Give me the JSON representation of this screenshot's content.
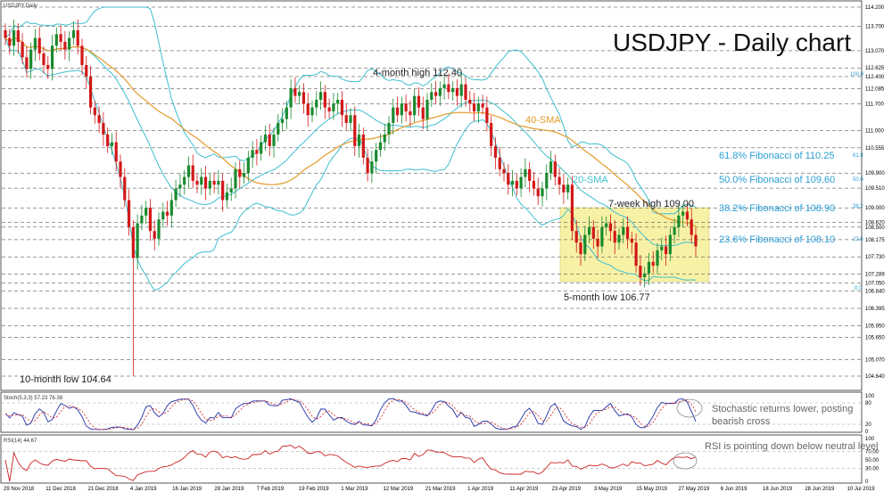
{
  "chart_data": {
    "type": "candlestick",
    "symbol_label": "USDJPY,Daily",
    "title": "USDJPY - Daily chart",
    "price_range": [
      104.64,
      114.2
    ],
    "price_ticks": [
      {
        "label": "114.200",
        "v": 114.2
      },
      {
        "label": "113.700",
        "v": 113.7
      },
      {
        "label": "113.070",
        "v": 113.07
      },
      {
        "label": "112.625",
        "v": 112.625
      },
      {
        "label": "112.400",
        "v": 112.4
      },
      {
        "label": "112.085",
        "v": 112.085
      },
      {
        "label": "111.700",
        "v": 111.7
      },
      {
        "label": "111.000",
        "v": 111.0
      },
      {
        "label": "110.555",
        "v": 110.555
      },
      {
        "label": "109.900",
        "v": 109.9
      },
      {
        "label": "109.510",
        "v": 109.51
      },
      {
        "label": "109.000",
        "v": 109.0
      },
      {
        "label": "108.620",
        "v": 108.62
      },
      {
        "label": "108.500",
        "v": 108.5
      },
      {
        "label": "108.175",
        "v": 108.175
      },
      {
        "label": "107.730",
        "v": 107.73
      },
      {
        "label": "107.289",
        "v": 107.289
      },
      {
        "label": "106.840",
        "v": 106.84
      },
      {
        "label": "107.050",
        "v": 107.05
      },
      {
        "label": "106.395",
        "v": 106.395
      },
      {
        "label": "105.950",
        "v": 105.95
      },
      {
        "label": "105.650",
        "v": 105.65
      },
      {
        "label": "105.070",
        "v": 105.07
      },
      {
        "label": "104.640",
        "v": 104.64
      }
    ],
    "date_labels": [
      "29 Nov 2018",
      "11 Dec 2018",
      "21 Dec 2018",
      "4 Jan 2019",
      "16 Jan 2019",
      "28 Jan 2019",
      "7 Feb 2019",
      "19 Feb 2019",
      "1 Mar 2019",
      "12 Mar 2019",
      "21 Mar 2019",
      "1 Apr 2019",
      "11 Apr 2019",
      "23 Apr 2019",
      "3 May 2019",
      "15 May 2019",
      "27 May 2019",
      "6 Jun 2019",
      "18 Jun 2019",
      "28 Jun 2019",
      "10 Jul 2019"
    ],
    "closes": [
      113.4,
      113.2,
      113.6,
      113.3,
      112.9,
      112.6,
      113.1,
      113.4,
      113.0,
      112.7,
      112.6,
      113.2,
      113.5,
      113.3,
      113.1,
      113.4,
      113.6,
      113.2,
      112.7,
      112.4,
      111.6,
      111.4,
      111.2,
      110.9,
      110.6,
      110.7,
      110.2,
      109.8,
      109.2,
      108.5,
      107.7,
      108.6,
      108.8,
      109.0,
      108.4,
      108.2,
      108.7,
      108.9,
      108.8,
      109.2,
      109.5,
      109.6,
      109.8,
      110.1,
      109.7,
      109.6,
      109.8,
      109.5,
      109.7,
      109.6,
      109.7,
      109.2,
      109.4,
      109.5,
      110.0,
      109.8,
      109.9,
      110.3,
      110.5,
      110.4,
      110.7,
      110.9,
      110.6,
      110.9,
      111.2,
      111.3,
      111.6,
      112.1,
      111.9,
      112.0,
      111.7,
      111.4,
      111.6,
      111.8,
      112.0,
      111.6,
      111.5,
      111.7,
      111.8,
      111.4,
      111.2,
      111.4,
      110.6,
      110.9,
      110.3,
      109.9,
      110.2,
      110.5,
      110.7,
      110.9,
      111.2,
      111.6,
      111.4,
      111.7,
      111.5,
      111.4,
      111.9,
      111.6,
      111.3,
      111.8,
      112.0,
      111.9,
      112.1,
      112.2,
      112.0,
      112.1,
      111.9,
      112.2,
      111.8,
      111.7,
      111.5,
      111.7,
      111.6,
      111.2,
      110.6,
      110.3,
      110.0,
      109.9,
      109.6,
      109.7,
      109.5,
      109.8,
      110.0,
      109.7,
      109.5,
      109.3,
      109.5,
      109.9,
      110.2,
      109.8,
      109.6,
      109.4,
      109.6,
      108.4,
      108.1,
      107.8,
      108.3,
      108.5,
      108.2,
      108.0,
      108.5,
      108.6,
      108.4,
      108.1,
      108.3,
      108.5,
      108.2,
      108.1,
      107.5,
      107.2,
      107.3,
      107.6,
      107.5,
      107.9,
      108.0,
      107.8,
      108.3,
      108.5,
      108.8,
      108.9,
      108.7,
      108.3,
      108.0
    ],
    "annotations": {
      "high_4m": "4-month high 112.40",
      "low_10m": "10-month low 104.64",
      "high_7w": "7-week high 109.00",
      "low_5m": "5-month low 106.77",
      "sma40": "40-SMA",
      "sma20": "20-SMA",
      "fib_618": "61.8% Fibonacci of 110.25",
      "fib_50": "50.0% Fibonacci of 109.60",
      "fib_382": "38.2% Fibonacci of 108.90",
      "fib_236": "23.6% Fibonacci of 108.10",
      "fib_100": "100.0",
      "fib_0": "0.0",
      "fib_618s": "61.8",
      "fib_50s": "50.0",
      "fib_382s": "38.2",
      "fib_236s": "23.6",
      "stoch_note1": "Stochastic returns lower, posting",
      "stoch_note2": "bearish cross",
      "rsi_note": "RSI is pointing down below neutral level"
    },
    "stoch": {
      "label": "Stoch(5,3,3) 57.23 76.38",
      "ticks": [
        {
          "label": "100",
          "v": 100
        },
        {
          "label": "80",
          "v": 80
        },
        {
          "label": "20",
          "v": 20
        },
        {
          "label": "0",
          "v": 0
        }
      ]
    },
    "rsi": {
      "label": "RSI(14) 44.67",
      "ticks": [
        {
          "label": "100",
          "v": 100
        },
        {
          "label": "70.00",
          "v": 70
        },
        {
          "label": "50.00",
          "v": 50
        },
        {
          "label": "30.00",
          "v": 30
        },
        {
          "label": "0",
          "v": 0
        }
      ]
    },
    "colors": {
      "bull": "#1a8a2e",
      "bear": "#d11818",
      "sma20": "#3fbfcf",
      "sma40": "#e39a2a",
      "band": "#3fbfcf",
      "fib": "#2a9fd6",
      "box": "#f7f1a6"
    }
  }
}
